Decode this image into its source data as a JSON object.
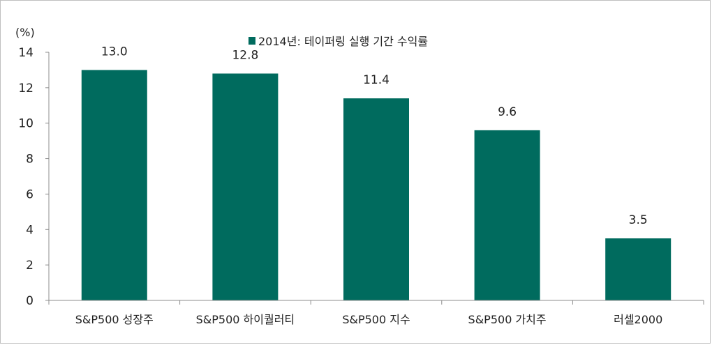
{
  "chart_data": {
    "type": "bar",
    "unit_label": "(%)",
    "legend_label": "2014년: 테이퍼링 실행 기간 수익률",
    "legend_position": "top-center",
    "categories": [
      "S&P500 성장주",
      "S&P500 하이퀄러티",
      "S&P500 지수",
      "S&P500 가치주",
      "러셀2000"
    ],
    "values": [
      13.0,
      12.8,
      11.4,
      9.6,
      3.5
    ],
    "data_labels": [
      "13.0",
      "12.8",
      "11.4",
      "9.6",
      "3.5"
    ],
    "yticks": [
      "0",
      "2",
      "4",
      "6",
      "8",
      "10",
      "12",
      "14"
    ],
    "ylim": [
      0,
      14
    ],
    "grid": false,
    "bar_color": "#006b5e",
    "axis_color": "#8c8c8c"
  }
}
